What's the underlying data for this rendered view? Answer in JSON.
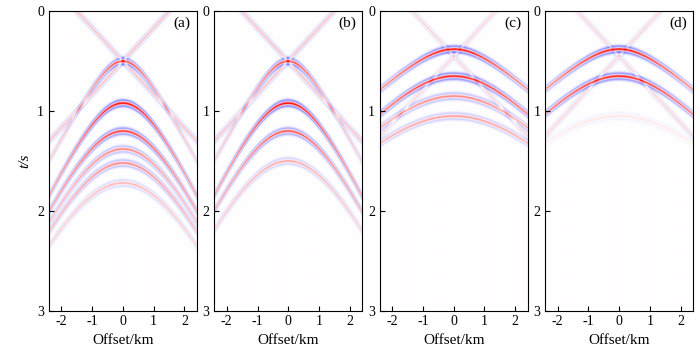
{
  "chart_data": [
    {
      "type": "image",
      "label": "(a)",
      "xlabel": "Offset/km",
      "ylabel": "t/s",
      "xlim": [
        -2.4,
        2.4
      ],
      "ylim": [
        3,
        0
      ],
      "xticks": [
        -2,
        -1,
        0,
        1,
        2
      ],
      "yticks": [
        0,
        1,
        2,
        3
      ],
      "color_range": [
        -1,
        1
      ],
      "reflections": [
        {
          "t0": 0.5,
          "velocity": 1.7,
          "amplitude": 0.8
        },
        {
          "t0": 0.92,
          "velocity": 1.5,
          "amplitude": 1.0
        },
        {
          "t0": 1.2,
          "velocity": 1.5,
          "amplitude": 0.8
        },
        {
          "t0": 1.38,
          "velocity": 1.5,
          "amplitude": 0.5
        },
        {
          "t0": 1.52,
          "velocity": 1.5,
          "amplitude": 0.5
        },
        {
          "t0": 1.72,
          "velocity": 1.5,
          "amplitude": 0.3
        }
      ],
      "linear_events": [
        {
          "t0": 0.5,
          "slope": 0.333,
          "amplitude": 0.3
        },
        {
          "t0": 0.5,
          "slope": -0.333,
          "amplitude": 0.3
        }
      ]
    },
    {
      "type": "image",
      "label": "(b)",
      "xlabel": "Offset/km",
      "xlim": [
        -2.4,
        2.4
      ],
      "ylim": [
        3,
        0
      ],
      "xticks": [
        -2,
        -1,
        0,
        1,
        2
      ],
      "yticks": [
        0,
        1,
        2,
        3
      ],
      "color_range": [
        -1,
        1
      ],
      "reflections": [
        {
          "t0": 0.5,
          "velocity": 1.7,
          "amplitude": 0.8
        },
        {
          "t0": 0.92,
          "velocity": 1.5,
          "amplitude": 1.0
        },
        {
          "t0": 1.2,
          "velocity": 1.5,
          "amplitude": 0.7
        },
        {
          "t0": 1.5,
          "velocity": 1.5,
          "amplitude": 0.35
        }
      ],
      "linear_events": [
        {
          "t0": 0.5,
          "slope": 0.333,
          "amplitude": 0.3
        },
        {
          "t0": 0.5,
          "slope": -0.333,
          "amplitude": 0.3
        }
      ]
    },
    {
      "type": "image",
      "label": "(c)",
      "xlabel": "Offset/km",
      "xlim": [
        -2.4,
        2.4
      ],
      "ylim": [
        3,
        0
      ],
      "xticks": [
        -2,
        -1,
        0,
        1,
        2
      ],
      "yticks": [
        0,
        1,
        2,
        3
      ],
      "color_range": [
        -1,
        1
      ],
      "reflections": [
        {
          "t0": 0.38,
          "velocity": 3.5,
          "amplitude": 1.0
        },
        {
          "t0": 0.65,
          "velocity": 3.0,
          "amplitude": 0.9
        },
        {
          "t0": 0.85,
          "velocity": 3.0,
          "amplitude": 0.5
        },
        {
          "t0": 1.05,
          "velocity": 3.0,
          "amplitude": 0.4
        }
      ],
      "linear_events": [
        {
          "t0": 0.45,
          "slope": 0.333,
          "amplitude": 0.2
        },
        {
          "t0": 0.45,
          "slope": -0.333,
          "amplitude": 0.2
        }
      ]
    },
    {
      "type": "image",
      "label": "(d)",
      "xlabel": "Offset/km",
      "xlim": [
        -2.4,
        2.4
      ],
      "ylim": [
        3,
        0
      ],
      "xticks": [
        -2,
        -1,
        0,
        1,
        2
      ],
      "yticks": [
        0,
        1,
        2,
        3
      ],
      "color_range": [
        -1,
        1
      ],
      "reflections": [
        {
          "t0": 0.38,
          "velocity": 3.5,
          "amplitude": 1.0
        },
        {
          "t0": 0.65,
          "velocity": 3.0,
          "amplitude": 0.9
        },
        {
          "t0": 1.05,
          "velocity": 3.0,
          "amplitude": 0.1
        }
      ],
      "linear_events": [
        {
          "t0": 0.45,
          "slope": 0.333,
          "amplitude": 0.2
        },
        {
          "t0": 0.45,
          "slope": -0.333,
          "amplitude": 0.2
        }
      ]
    }
  ]
}
